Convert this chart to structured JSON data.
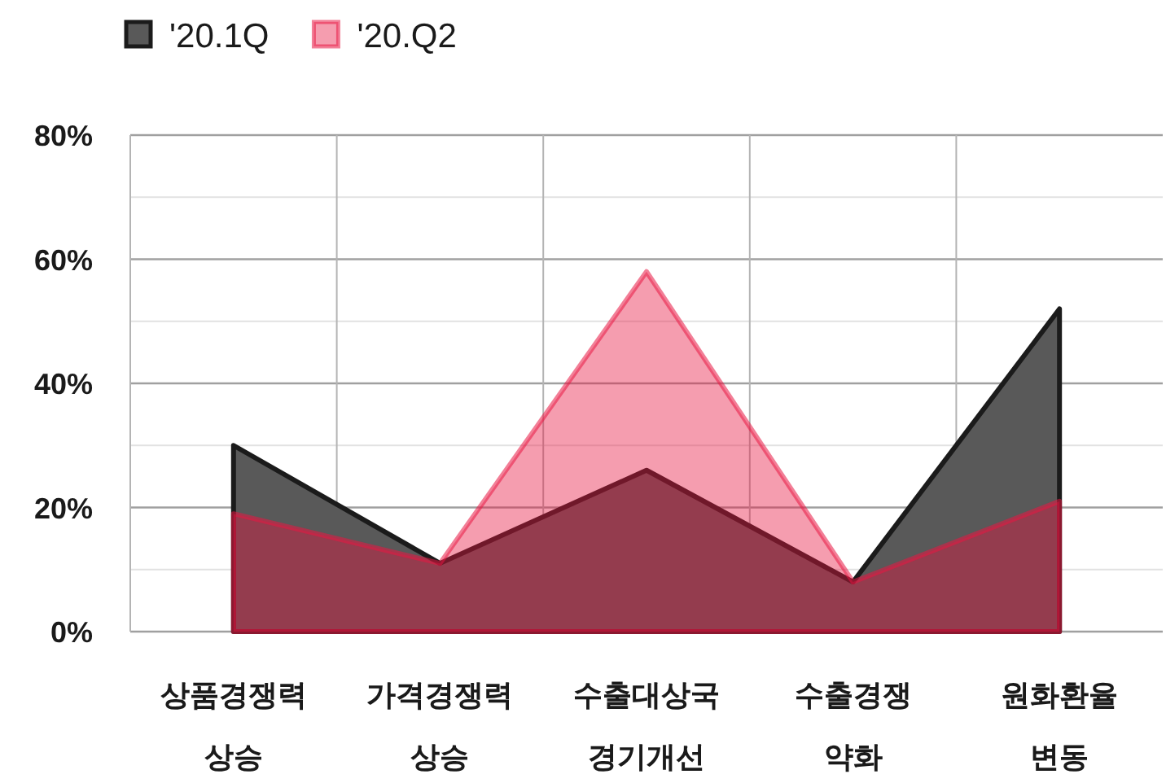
{
  "chart_data": {
    "type": "area",
    "categories": [
      "상품경쟁력 상승",
      "가격경쟁력 상승",
      "수출대상국 경기개선",
      "수출경쟁 약화",
      "원화환율 변동"
    ],
    "series": [
      {
        "name": "'20.1Q",
        "color": "#595959",
        "values": [
          30,
          11,
          26,
          8,
          52
        ]
      },
      {
        "name": "'20.Q2",
        "color": "#e71641",
        "values": [
          19,
          11,
          58,
          8,
          21
        ]
      }
    ],
    "ylim": [
      0,
      80
    ],
    "yticks": [
      {
        "value": 0,
        "label": "0%"
      },
      {
        "value": 10,
        "label": null
      },
      {
        "value": 20,
        "label": "20%"
      },
      {
        "value": 30,
        "label": null
      },
      {
        "value": 40,
        "label": "40%"
      },
      {
        "value": 50,
        "label": null
      },
      {
        "value": 60,
        "label": "60%"
      },
      {
        "value": 70,
        "label": null
      },
      {
        "value": 80,
        "label": "80%"
      }
    ],
    "grid": true,
    "legend": "top left"
  }
}
